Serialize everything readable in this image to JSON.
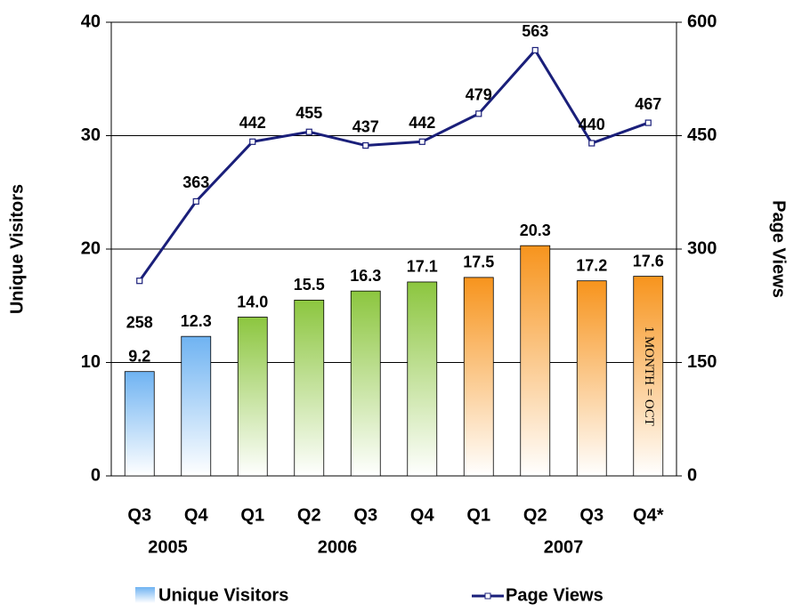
{
  "chart_data": {
    "type": "bar-line",
    "categories": [
      "Q3",
      "Q4",
      "Q1",
      "Q2",
      "Q3",
      "Q4",
      "Q1",
      "Q2",
      "Q3",
      "Q4*"
    ],
    "groups": [
      {
        "label": "2005",
        "span": 2,
        "color": "#6fb3f2"
      },
      {
        "label": "2006",
        "span": 4,
        "color": "#8cc63f"
      },
      {
        "label": "2007",
        "span": 4,
        "color": "#f7941d"
      }
    ],
    "series": [
      {
        "name": "Unique Visitors",
        "type": "bar",
        "axis": "y",
        "values": [
          9.2,
          12.3,
          14.0,
          15.5,
          16.3,
          17.1,
          17.5,
          20.3,
          17.2,
          17.6
        ],
        "value_labels": [
          "9.2",
          "12.3",
          "14.0",
          "15.5",
          "16.3",
          "17.1",
          "17.5",
          "20.3",
          "17.2",
          "17.6"
        ],
        "color": "#6fb3f2"
      },
      {
        "name": "Page Views",
        "type": "line",
        "axis": "y2",
        "values": [
          258,
          363,
          442,
          455,
          437,
          442,
          479,
          563,
          440,
          467
        ],
        "color": "#1a1f7a"
      }
    ],
    "ylabel": "Unique Visitors",
    "y2label": "Page Views",
    "ylim": [
      0,
      40
    ],
    "yticks": [
      0,
      10,
      20,
      30,
      40
    ],
    "y2lim": [
      0,
      600
    ],
    "y2ticks": [
      0,
      150,
      300,
      450,
      600
    ],
    "annotation": "1 MONTH = OCT",
    "grid": true,
    "legend": "bottom"
  }
}
